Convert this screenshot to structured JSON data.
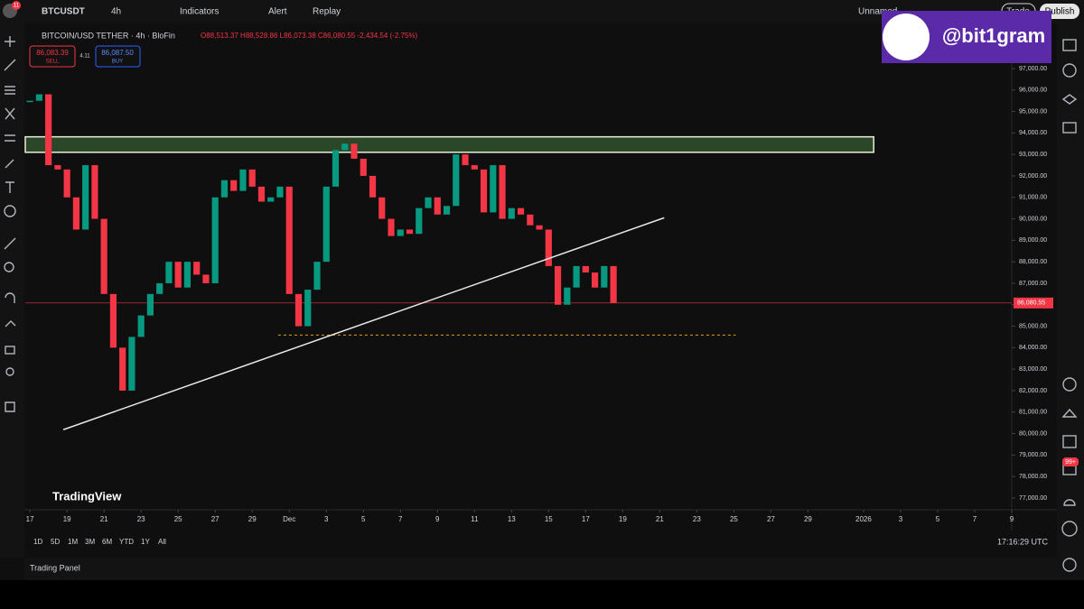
{
  "toolbar": {
    "symbol": "BTCUSDT",
    "notifications": "11",
    "interval": "4h",
    "indicators": "Indicators",
    "alert": "Alert",
    "replay": "Replay",
    "layout_name": "Unnamed",
    "trade": "Trade",
    "publish": "Publish"
  },
  "legend": {
    "title": "BITCOIN/USD TETHER · 4h · BloFin",
    "ohlc": "O88,513.37 H88,528.86 L86,073.38 C86,080.55 -2,434.54 (-2.75%)"
  },
  "order": {
    "sell_price": "86,083.39",
    "sell": "SELL",
    "spread": "4.11",
    "buy_price": "86,087.50",
    "buy": "BUY"
  },
  "watermark": "@bit1gram",
  "logo": "TradingView",
  "chart_data": {
    "type": "candlestick",
    "x": [
      0,
      0.5,
      1,
      1.5,
      2,
      2.5,
      3,
      3.5,
      4,
      4.5,
      5,
      5.5,
      6,
      6.5,
      7,
      7.5,
      8,
      8.5,
      9,
      9.5,
      10,
      10.5,
      11,
      11.5,
      12,
      12.5,
      13,
      13.5,
      14,
      14.5,
      15,
      15.5,
      16,
      16.5,
      17,
      17.5,
      18,
      18.5,
      19,
      19.5,
      20,
      20.5,
      21,
      21.5,
      22,
      22.5,
      23,
      23.5,
      24,
      24.5,
      25,
      25.5,
      26,
      26.5,
      27,
      27.5,
      28,
      28.5,
      29,
      29.5,
      30,
      30.5,
      31,
      31.5
    ],
    "series": [
      {
        "name": "BTCUSDT",
        "values": [
          95500,
          95800,
          92500,
          92300,
          91000,
          89500,
          92500,
          90000,
          86500,
          84000,
          82000,
          84500,
          85500,
          86500,
          87000,
          88000,
          86800,
          88000,
          87400,
          87000,
          91000,
          91800,
          91300,
          92300,
          91500,
          90800,
          91000,
          91500,
          86500,
          85000,
          86700,
          88000,
          91500,
          93200,
          93500,
          92800,
          92000,
          91000,
          90000,
          89200,
          89500,
          89300,
          90500,
          91000,
          90200,
          90600,
          93000,
          92500,
          92300,
          90300,
          92500,
          90000,
          90500,
          90200,
          89700,
          89500,
          87800,
          86000,
          86800,
          87800,
          87500,
          86800,
          87800,
          86080.55
        ]
      }
    ],
    "up_color": "#089981",
    "down_color": "#f23645",
    "xlim": [
      -0.25,
      53
    ],
    "ylim": [
      76450,
      99100
    ],
    "xticks": [
      {
        "value": 0,
        "label": "17"
      },
      {
        "value": 2,
        "label": "19"
      },
      {
        "value": 4,
        "label": "21"
      },
      {
        "value": 6,
        "label": "23"
      },
      {
        "value": 8,
        "label": "25"
      },
      {
        "value": 10,
        "label": "27"
      },
      {
        "value": 12,
        "label": "29"
      },
      {
        "value": 14,
        "label": "Dec"
      },
      {
        "value": 16,
        "label": "3"
      },
      {
        "value": 18,
        "label": "5"
      },
      {
        "value": 20,
        "label": "7"
      },
      {
        "value": 22,
        "label": "9"
      },
      {
        "value": 24,
        "label": "11"
      },
      {
        "value": 26,
        "label": "13"
      },
      {
        "value": 28,
        "label": "15"
      },
      {
        "value": 30,
        "label": "17"
      },
      {
        "value": 32,
        "label": "19"
      },
      {
        "value": 34,
        "label": "21"
      },
      {
        "value": 36,
        "label": "23"
      },
      {
        "value": 38,
        "label": "25"
      },
      {
        "value": 40,
        "label": "27"
      },
      {
        "value": 42,
        "label": "29"
      },
      {
        "value": 45,
        "label": "2026"
      },
      {
        "value": 47,
        "label": "3"
      },
      {
        "value": 49,
        "label": "5"
      },
      {
        "value": 51,
        "label": "7"
      },
      {
        "value": 53,
        "label": "9"
      }
    ],
    "yticks": [
      {
        "value": 77000,
        "label": "77,000.00"
      },
      {
        "value": 78000,
        "label": "78,000.00"
      },
      {
        "value": 79000,
        "label": "79,000.00"
      },
      {
        "value": 80000,
        "label": "80,000.00"
      },
      {
        "value": 81000,
        "label": "81,000.00"
      },
      {
        "value": 82000,
        "label": "82,000.00"
      },
      {
        "value": 83000,
        "label": "83,000.00"
      },
      {
        "value": 84000,
        "label": "84,000.00"
      },
      {
        "value": 85000,
        "label": "85,000.00"
      },
      {
        "value": 86000,
        "label": "86,000.00"
      },
      {
        "value": 87000,
        "label": "87,000.00"
      },
      {
        "value": 88000,
        "label": "88,000.00"
      },
      {
        "value": 89000,
        "label": "89,000.00"
      },
      {
        "value": 90000,
        "label": "90,000.00"
      },
      {
        "value": 91000,
        "label": "91,000.00"
      },
      {
        "value": 92000,
        "label": "92,000.00"
      },
      {
        "value": 93000,
        "label": "93,000.00"
      },
      {
        "value": 94000,
        "label": "94,000.00"
      },
      {
        "value": 95000,
        "label": "95,000.00"
      },
      {
        "value": 96000,
        "label": "96,000.00"
      },
      {
        "value": 97000,
        "label": "97,000.00"
      }
    ],
    "last_price": {
      "value": 86080.55,
      "label": "86,080.55"
    },
    "zone": {
      "x": [
        -0.25,
        45.55
      ],
      "y": [
        93100,
        93820
      ]
    },
    "trendline": {
      "x": [
        1.8,
        34.24
      ],
      "y": [
        80180,
        90050
      ]
    },
    "support": {
      "x": [
        13.4,
        38.1
      ],
      "y": 84585
    }
  },
  "timeframes": [
    "1D",
    "5D",
    "1M",
    "3M",
    "6M",
    "YTD",
    "1Y",
    "All"
  ],
  "clock": "17:16:29 UTC",
  "panel": "Trading Panel",
  "alerts_badge": "99+"
}
